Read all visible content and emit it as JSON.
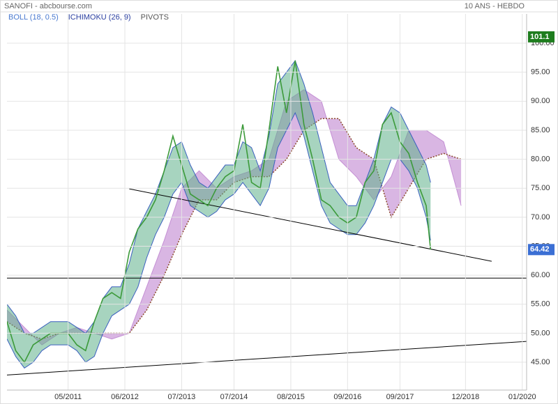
{
  "chart_data": {
    "type": "line",
    "title": "SANOFI - abcbourse.com",
    "subtitle": "10 ANS - HEBDO",
    "x": [
      "2010-03",
      "2010-05",
      "2010-07",
      "2010-09",
      "2010-11",
      "2011-01",
      "2011-03",
      "2011-05",
      "2011-07",
      "2011-09",
      "2011-11",
      "2012-01",
      "2012-03",
      "2012-05",
      "2012-07",
      "2012-09",
      "2012-11",
      "2013-01",
      "2013-03",
      "2013-05",
      "2013-07",
      "2013-09",
      "2013-11",
      "2014-01",
      "2014-03",
      "2014-05",
      "2014-07",
      "2014-09",
      "2014-11",
      "2015-01",
      "2015-03",
      "2015-05",
      "2015-07",
      "2015-09",
      "2015-11",
      "2016-01",
      "2016-03",
      "2016-05",
      "2016-07",
      "2016-09",
      "2016-11",
      "2017-01",
      "2017-03",
      "2017-05",
      "2017-07",
      "2017-09",
      "2017-11",
      "2018-01",
      "2018-03",
      "2018-04"
    ],
    "price": {
      "color": "#3c9a3a",
      "values": [
        52,
        47,
        45,
        48,
        49,
        50,
        50,
        50,
        48,
        47,
        52,
        56,
        57,
        56,
        64,
        68,
        70,
        73,
        78,
        84,
        79,
        74,
        73,
        72,
        75,
        77,
        78,
        86,
        76,
        75,
        85,
        96,
        88,
        97,
        86,
        80,
        73,
        72,
        70,
        69,
        70,
        76,
        78,
        86,
        88,
        83,
        81,
        76,
        72,
        64.42
      ]
    },
    "bollinger": {
      "name": "BOLL (18, 0.5)",
      "label_color": "#4a7ad0",
      "line_color": "#3a5fbf",
      "fill": "#5fb08a",
      "upper": [
        55,
        53,
        50,
        50,
        51,
        52,
        52,
        52,
        51,
        50,
        52,
        56,
        58,
        58,
        62,
        68,
        71,
        74,
        78,
        82,
        83,
        79,
        76,
        75,
        77,
        79,
        79,
        83,
        82,
        78,
        84,
        93,
        95,
        97,
        93,
        88,
        82,
        76,
        74,
        72,
        72,
        76,
        80,
        86,
        89,
        88,
        85,
        82,
        79,
        76
      ],
      "lower": [
        49,
        46,
        44,
        45,
        47,
        48,
        48,
        48,
        47,
        45,
        46,
        50,
        53,
        54,
        55,
        58,
        63,
        67,
        70,
        74,
        76,
        72,
        71,
        70,
        71,
        73,
        74,
        76,
        74,
        72,
        75,
        82,
        85,
        88,
        84,
        78,
        72,
        69,
        68,
        67,
        67,
        69,
        72,
        76,
        80,
        80,
        78,
        75,
        70,
        66
      ]
    },
    "ichimoku": {
      "name": "ICHIMOKU (26, 9)",
      "label_color": "#2a3fa0",
      "fill": "#c48fd4",
      "line_color": "#8b4a2a",
      "x": [
        "2010-03",
        "2010-07",
        "2010-11",
        "2011-03",
        "2011-07",
        "2011-11",
        "2012-03",
        "2012-07",
        "2012-11",
        "2013-03",
        "2013-07",
        "2013-11",
        "2014-03",
        "2014-07",
        "2014-11",
        "2015-03",
        "2015-07",
        "2015-11",
        "2016-03",
        "2016-07",
        "2016-11",
        "2017-03",
        "2017-07",
        "2017-11",
        "2018-03",
        "2018-07",
        "2018-11"
      ],
      "span_a": [
        54,
        51,
        48,
        50,
        51,
        50,
        49,
        50,
        58,
        66,
        75,
        78,
        75,
        77,
        78,
        80,
        90,
        92,
        90,
        80,
        77,
        73,
        77,
        85,
        85,
        83,
        72
      ],
      "span_b": [
        52,
        50,
        49,
        50,
        50,
        50,
        50,
        50,
        54,
        60,
        67,
        73,
        73,
        76,
        77,
        77,
        80,
        85,
        87,
        87,
        82,
        80,
        70,
        75,
        80,
        81,
        80
      ]
    },
    "pivots": {
      "name": "PIVOTS",
      "label_color": "#555555",
      "color": "#000000",
      "lines": [
        {
          "x": [
            "2012-07",
            "2019-06"
          ],
          "y": [
            74.9,
            62.4
          ]
        },
        {
          "x": [
            "2010-03",
            "2020-02"
          ],
          "y": [
            59.5,
            59.5
          ]
        },
        {
          "x": [
            "2010-03",
            "2020-02"
          ],
          "y": [
            42.8,
            48.6
          ]
        }
      ]
    },
    "markers": [
      {
        "value": 101.1,
        "color": "#1e7d1e"
      },
      {
        "value": 64.42,
        "color": "#3b6fd4"
      }
    ],
    "xlim": [
      "2010-03",
      "2020-02"
    ],
    "xticks": [
      {
        "value": "2011-05",
        "label": "05/2011"
      },
      {
        "value": "2012-06",
        "label": "06/2012"
      },
      {
        "value": "2013-07",
        "label": "07/2013"
      },
      {
        "value": "2014-07",
        "label": "07/2014"
      },
      {
        "value": "2015-08",
        "label": "08/2015"
      },
      {
        "value": "2016-09",
        "label": "09/2016"
      },
      {
        "value": "2017-09",
        "label": "09/2017"
      },
      {
        "value": "2018-12",
        "label": "12/2018"
      },
      {
        "value": "2020-01",
        "label": "01/2020"
      }
    ],
    "ylim": [
      40.2,
      105.05
    ],
    "yticks": [
      {
        "value": 45,
        "label": "45.00"
      },
      {
        "value": 50,
        "label": "50.00"
      },
      {
        "value": 55,
        "label": "55.00"
      },
      {
        "value": 60,
        "label": "60.00"
      },
      {
        "value": 65,
        "label": "65.00"
      },
      {
        "value": 70,
        "label": "70.00"
      },
      {
        "value": 75,
        "label": "75.00"
      },
      {
        "value": 80,
        "label": "80.00"
      },
      {
        "value": 85,
        "label": "85.00"
      },
      {
        "value": 90,
        "label": "90.00"
      },
      {
        "value": 95,
        "label": "95.00"
      },
      {
        "value": 100,
        "label": "100.00"
      }
    ],
    "grid": true
  }
}
